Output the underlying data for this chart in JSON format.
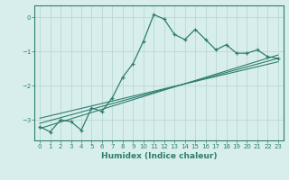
{
  "xlabel": "Humidex (Indice chaleur)",
  "bg_color": "#d8eeed",
  "grid_color": "#b8d8d4",
  "line_color": "#2e7d6e",
  "xlim": [
    -0.5,
    23.5
  ],
  "ylim": [
    -3.6,
    0.35
  ],
  "yticks": [
    0,
    -1,
    -2,
    -3
  ],
  "xticks": [
    0,
    1,
    2,
    3,
    4,
    5,
    6,
    7,
    8,
    9,
    10,
    11,
    12,
    13,
    14,
    15,
    16,
    17,
    18,
    19,
    20,
    21,
    22,
    23
  ],
  "main_x": [
    0,
    1,
    2,
    3,
    4,
    5,
    6,
    7,
    8,
    9,
    10,
    11,
    12,
    13,
    14,
    15,
    16,
    17,
    18,
    19,
    20,
    21,
    22,
    23
  ],
  "main_y": [
    -3.2,
    -3.35,
    -3.0,
    -3.05,
    -3.3,
    -2.65,
    -2.75,
    -2.35,
    -1.75,
    -1.35,
    -0.7,
    0.08,
    -0.05,
    -0.5,
    -0.65,
    -0.35,
    -0.65,
    -0.95,
    -0.8,
    -1.05,
    -1.05,
    -0.95,
    -1.15,
    -1.2
  ],
  "line1_x": [
    0,
    23
  ],
  "line1_y": [
    -3.25,
    -1.1
  ],
  "line2_x": [
    0,
    23
  ],
  "line2_y": [
    -3.1,
    -1.2
  ],
  "line3_x": [
    0,
    23
  ],
  "line3_y": [
    -2.95,
    -1.3
  ]
}
